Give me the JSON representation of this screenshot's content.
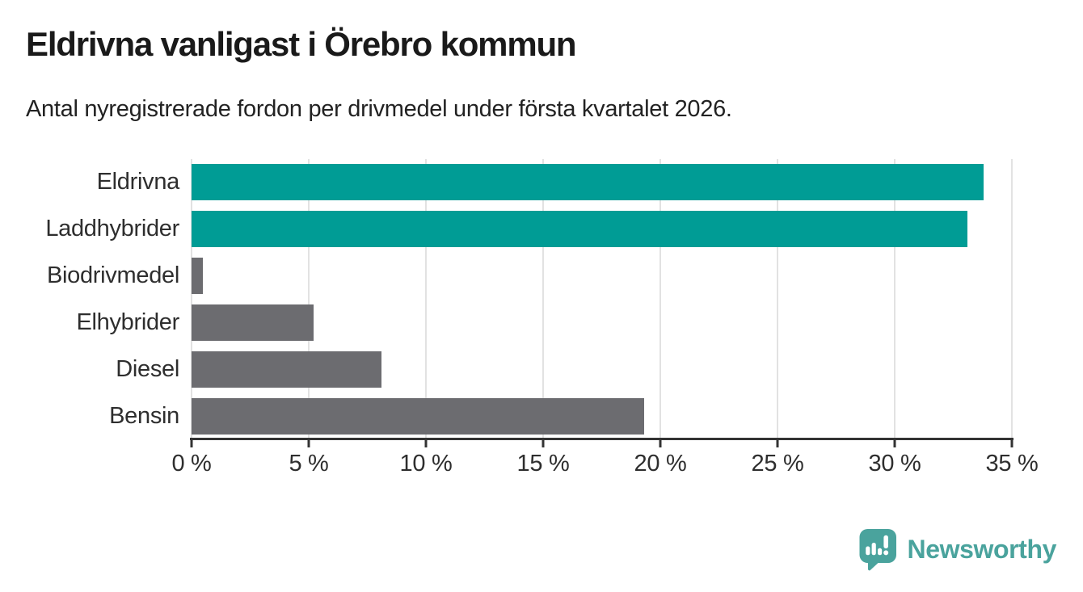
{
  "chart_data": {
    "type": "bar",
    "orientation": "horizontal",
    "title": "Eldrivna vanligast i Örebro kommun",
    "subtitle": "Antal nyregistrerade fordon per drivmedel under första kvartalet 2026.",
    "categories": [
      "Eldrivna",
      "Laddhybrider",
      "Biodrivmedel",
      "Elhybrider",
      "Diesel",
      "Bensin"
    ],
    "values": [
      33.8,
      33.1,
      0.5,
      5.2,
      8.1,
      19.3
    ],
    "unit": "%",
    "bar_colors": [
      "#009C95",
      "#009C95",
      "#6C6C70",
      "#6C6C70",
      "#6C6C70",
      "#6C6C70"
    ],
    "xlim": [
      0,
      35
    ],
    "x_tick_values": [
      0,
      5,
      10,
      15,
      20,
      25,
      30,
      35
    ],
    "x_tick_labels": [
      "0 %",
      "5 %",
      "10 %",
      "15 %",
      "20 %",
      "25 %",
      "30 %",
      "35 %"
    ],
    "grid": true,
    "legend": false,
    "xlabel": "",
    "ylabel": ""
  },
  "colors": {
    "highlight": "#009C95",
    "default_bar": "#6C6C70",
    "gridline": "#E2E2E2",
    "axis": "#333333",
    "title_text": "#1A1A1A",
    "body_text": "#222222"
  },
  "footer": {
    "brand": "Newsworthy",
    "brand_color": "#4AA39D",
    "logo_icon": "newsworthy-pin-barchart-icon"
  }
}
